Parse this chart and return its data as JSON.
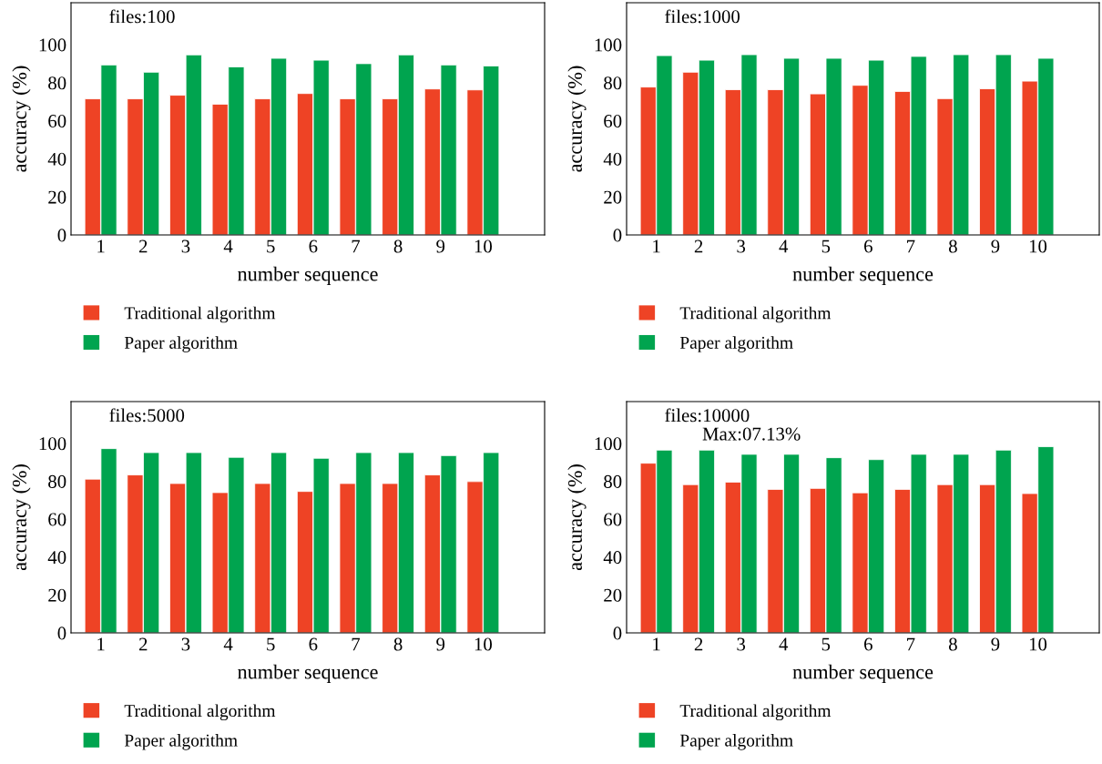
{
  "chart_data": [
    {
      "type": "bar",
      "title": "files:100",
      "xlabel": "number sequence",
      "ylabel": "accuracy (%)",
      "categories": [
        "1",
        "2",
        "3",
        "4",
        "5",
        "6",
        "7",
        "8",
        "9",
        "10"
      ],
      "series": [
        {
          "name": "Traditional algorithm",
          "color": "#ee4325",
          "values": [
            71.5,
            71.5,
            73.4,
            68.7,
            71.5,
            74.3,
            71.5,
            71.5,
            76.7,
            76.2
          ]
        },
        {
          "name": "Paper algorithm",
          "color": "#00a44f",
          "values": [
            89.3,
            85.5,
            94.6,
            88.3,
            92.8,
            91.8,
            90.0,
            94.6,
            89.3,
            88.8
          ]
        }
      ],
      "ylim": [
        0,
        122
      ],
      "yticks": [
        0,
        20,
        40,
        60,
        80,
        100
      ],
      "legend": "bottom",
      "grid": false
    },
    {
      "type": "bar",
      "title": "files:1000",
      "xlabel": "number sequence",
      "ylabel": "accuracy (%)",
      "categories": [
        "1",
        "2",
        "3",
        "4",
        "5",
        "6",
        "7",
        "8",
        "9",
        "10"
      ],
      "series": [
        {
          "name": "Traditional algorithm",
          "color": "#ee4325",
          "values": [
            77.7,
            85.5,
            76.3,
            76.3,
            74.1,
            78.6,
            75.4,
            71.6,
            76.8,
            80.8
          ]
        },
        {
          "name": "Paper algorithm",
          "color": "#00a44f",
          "values": [
            94.2,
            91.8,
            94.7,
            92.8,
            92.8,
            91.8,
            93.8,
            94.7,
            94.7,
            92.8
          ]
        }
      ],
      "ylim": [
        0,
        122
      ],
      "yticks": [
        0,
        20,
        40,
        60,
        80,
        100
      ],
      "legend": "bottom",
      "grid": false
    },
    {
      "type": "bar",
      "title": "files:5000",
      "xlabel": "number sequence",
      "ylabel": "accuracy (%)",
      "categories": [
        "1",
        "2",
        "3",
        "4",
        "5",
        "6",
        "7",
        "8",
        "9",
        "10"
      ],
      "series": [
        {
          "name": "Traditional algorithm",
          "color": "#ee4325",
          "values": [
            81.1,
            83.3,
            78.8,
            74.0,
            78.8,
            74.6,
            78.8,
            78.8,
            83.3,
            79.8
          ]
        },
        {
          "name": "Paper algorithm",
          "color": "#00a44f",
          "values": [
            97.2,
            95.1,
            95.1,
            92.6,
            95.1,
            92.1,
            95.1,
            95.1,
            93.5,
            95.1
          ]
        }
      ],
      "ylim": [
        0,
        122
      ],
      "yticks": [
        0,
        20,
        40,
        60,
        80,
        100
      ],
      "legend": "bottom",
      "grid": false
    },
    {
      "type": "bar",
      "title": "files:10000",
      "xlabel": "number sequence",
      "ylabel": "accuracy (%)",
      "categories": [
        "1",
        "2",
        "3",
        "4",
        "5",
        "6",
        "7",
        "8",
        "9",
        "10"
      ],
      "series": [
        {
          "name": "Traditional algorithm",
          "color": "#ee4325",
          "values": [
            89.5,
            78.2,
            79.5,
            75.7,
            76.2,
            73.9,
            75.7,
            78.2,
            78.2,
            73.5
          ]
        },
        {
          "name": "Paper algorithm",
          "color": "#00a44f",
          "values": [
            96.4,
            96.4,
            94.2,
            94.2,
            92.4,
            91.4,
            94.2,
            94.2,
            96.4,
            98.2
          ]
        }
      ],
      "ylim": [
        0,
        122
      ],
      "yticks": [
        0,
        20,
        40,
        60,
        80,
        100
      ],
      "legend": "bottom",
      "grid": false,
      "annotations": [
        "Max:07.13%"
      ]
    }
  ]
}
